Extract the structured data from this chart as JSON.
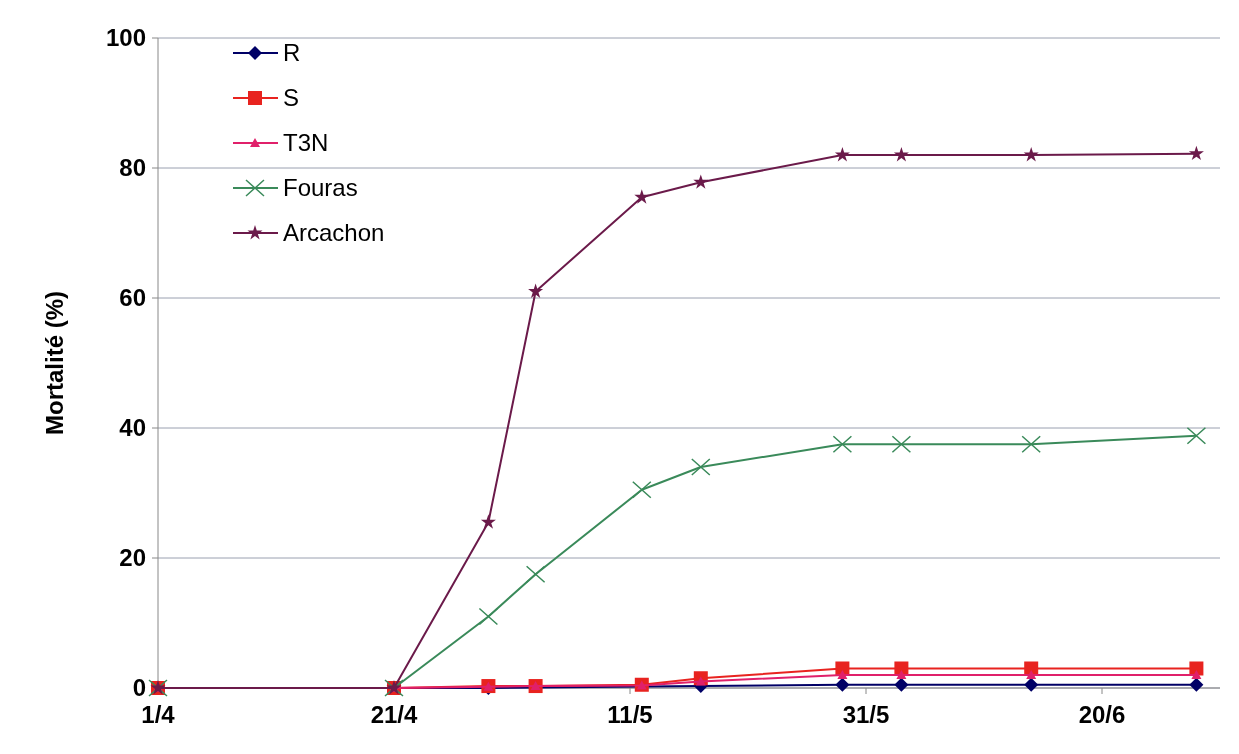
{
  "chart_data": {
    "type": "line",
    "ylabel": "Mortalité (%)",
    "x": [
      "--04-01",
      "--04-21",
      "--04-29",
      "--05-03",
      "--05-12",
      "--05-17",
      "--05-29",
      "--06-03",
      "--06-14",
      "--06-28"
    ],
    "series": [
      {
        "name": "R",
        "color": "#000066",
        "marker": "diamond",
        "values": [
          0,
          0,
          0,
          null,
          null,
          0.3,
          0.5,
          0.5,
          0.5,
          0.5
        ]
      },
      {
        "name": "S",
        "color": "#e8231f",
        "marker": "square",
        "values": [
          0,
          0,
          0.3,
          0.3,
          0.5,
          1.5,
          3,
          3,
          3,
          3
        ]
      },
      {
        "name": "T3N",
        "color": "#e0206a",
        "marker": "triangle",
        "values": [
          0,
          0,
          0.2,
          0.3,
          0.4,
          1,
          2,
          2,
          2,
          2
        ]
      },
      {
        "name": "Fouras",
        "color": "#3a8a5a",
        "marker": "cross",
        "values": [
          0,
          0,
          11,
          17.5,
          30.5,
          34,
          37.5,
          37.5,
          37.5,
          38.8
        ]
      },
      {
        "name": "Arcachon",
        "color": "#6b1a4a",
        "marker": "star",
        "values": [
          0,
          0,
          25.5,
          61,
          75.5,
          77.8,
          82,
          82,
          82,
          82.2
        ]
      }
    ],
    "xlim": [
      "--04-01",
      "--06-30"
    ],
    "xticks": [
      {
        "value": "--04-01",
        "label": "1/4"
      },
      {
        "value": "--04-21",
        "label": "21/4"
      },
      {
        "value": "--05-11",
        "label": "11/5"
      },
      {
        "value": "--05-31",
        "label": "31/5"
      },
      {
        "value": "--06-20",
        "label": "20/6"
      }
    ],
    "ylim": [
      0,
      100
    ],
    "yticks": [
      0,
      20,
      40,
      60,
      80,
      100
    ],
    "grid": "y",
    "legend": "top left",
    "line_style": "solid"
  }
}
